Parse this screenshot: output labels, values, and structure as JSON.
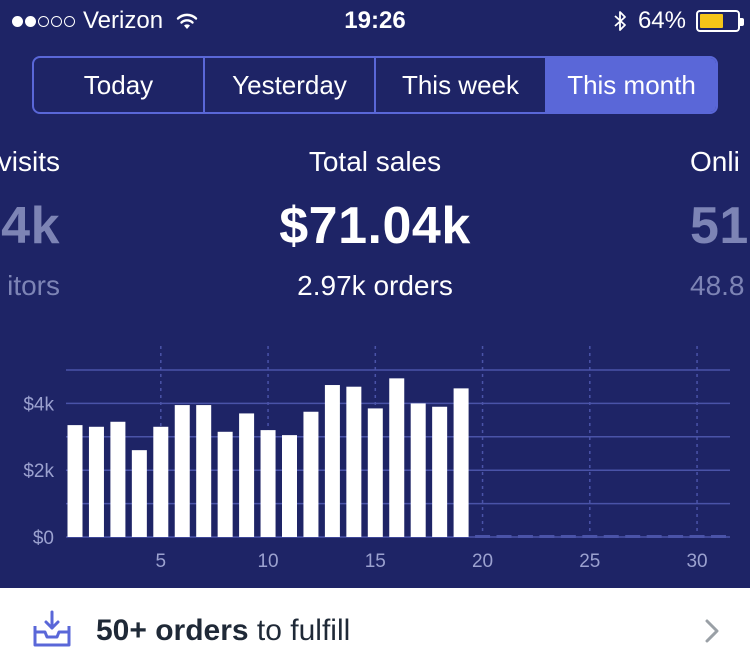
{
  "status_bar": {
    "carrier": "Verizon",
    "time": "19:26",
    "battery_percent": "64%",
    "battery_level": 0.64,
    "signal_bars_filled": 2,
    "signal_bars_total": 5
  },
  "segments": [
    "Today",
    "Yesterday",
    "This week",
    "This month"
  ],
  "active_segment": "This month",
  "metrics": {
    "left": {
      "title": "visits",
      "value": "4k",
      "sub": "itors"
    },
    "center": {
      "title": "Total sales",
      "value": "$71.04k",
      "sub": "2.97k orders"
    },
    "right": {
      "title": "Onli",
      "value": "51",
      "sub": "48.8"
    }
  },
  "chart_data": {
    "type": "bar",
    "x": [
      1,
      2,
      3,
      4,
      5,
      6,
      7,
      8,
      9,
      10,
      11,
      12,
      13,
      14,
      15,
      16,
      17,
      18,
      19,
      20,
      21,
      22,
      23,
      24,
      25,
      26,
      27,
      28,
      29,
      30,
      31
    ],
    "values": [
      3.35,
      3.3,
      3.45,
      2.6,
      3.3,
      3.95,
      3.95,
      3.15,
      3.7,
      3.2,
      3.05,
      3.75,
      4.55,
      4.5,
      3.85,
      4.75,
      4.0,
      3.9,
      4.45,
      0,
      0,
      0,
      0,
      0,
      0,
      0,
      0,
      0,
      0,
      0,
      0
    ],
    "x_ticks": [
      "5",
      "10",
      "15",
      "20",
      "25",
      "30"
    ],
    "x_tick_values": [
      5,
      10,
      15,
      20,
      25,
      30
    ],
    "y_ticks": [
      "$0",
      "$2k",
      "$4k"
    ],
    "y_tick_values": [
      0,
      2,
      4
    ],
    "ylim": [
      0,
      5
    ],
    "grid": true,
    "colors": {
      "bar": "#ffffff",
      "grid": "#4a53a8",
      "future": "#4a53a8"
    }
  },
  "bottom_bar": {
    "icon": "inbox-download-icon",
    "strong": "50+ orders",
    "rest": " to fulfill",
    "chevron": "chevron-right-icon"
  },
  "colors": {
    "background": "#1e2466",
    "accent": "#5a67d8",
    "muted": "#7d84b5"
  }
}
